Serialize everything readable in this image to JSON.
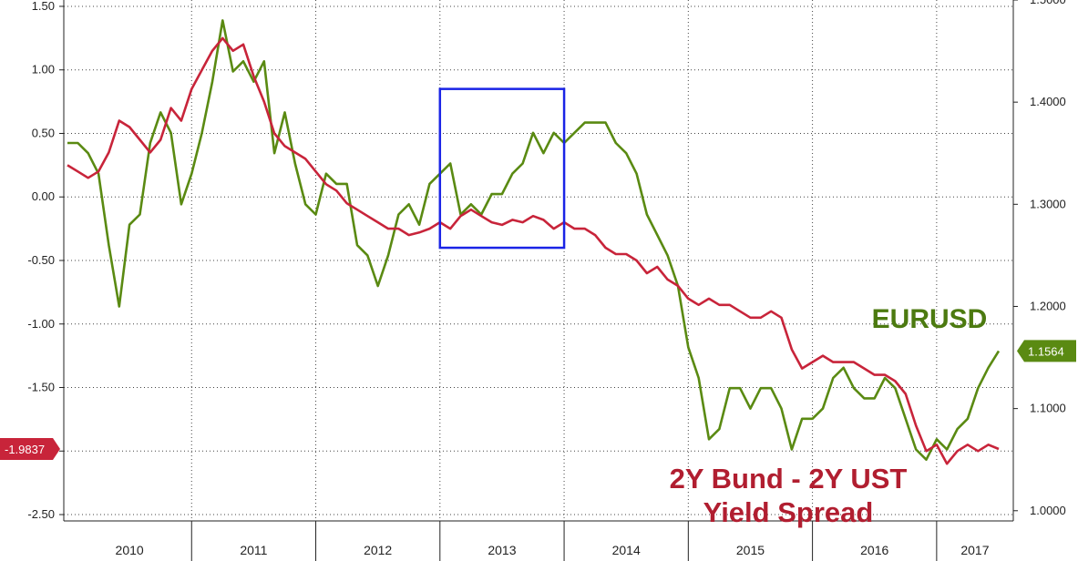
{
  "chart_data": {
    "type": "line",
    "x_axis": {
      "type": "date",
      "tick_labels": [
        "2010",
        "2011",
        "2012",
        "2013",
        "2014",
        "2015",
        "2016",
        "2017"
      ],
      "range": [
        "2010-01",
        "2017-07"
      ]
    },
    "y_left": {
      "tick_labels": [
        "1.50",
        "1.00",
        "0.50",
        "0.00",
        "-0.50",
        "-1.00",
        "-1.50",
        "-2.00",
        "-2.50"
      ],
      "range": [
        -2.55,
        1.55
      ]
    },
    "y_right": {
      "tick_labels": [
        "1.5000",
        "1.4000",
        "1.3000",
        "1.2000",
        "1.1000",
        "1.0000"
      ],
      "range": [
        0.99,
        1.5
      ]
    },
    "grid": true,
    "series": [
      {
        "name": "EURUSD",
        "axis": "right",
        "color": "#5a8a12",
        "last_value_label": "1.1564",
        "points": [
          [
            "2010-01",
            1.36
          ],
          [
            "2010-02",
            1.36
          ],
          [
            "2010-03",
            1.35
          ],
          [
            "2010-04",
            1.33
          ],
          [
            "2010-05",
            1.26
          ],
          [
            "2010-06",
            1.2
          ],
          [
            "2010-07",
            1.28
          ],
          [
            "2010-08",
            1.29
          ],
          [
            "2010-09",
            1.36
          ],
          [
            "2010-10",
            1.39
          ],
          [
            "2010-11",
            1.37
          ],
          [
            "2010-12",
            1.3
          ],
          [
            "2011-01",
            1.33
          ],
          [
            "2011-02",
            1.37
          ],
          [
            "2011-03",
            1.42
          ],
          [
            "2011-04",
            1.48
          ],
          [
            "2011-05",
            1.43
          ],
          [
            "2011-06",
            1.44
          ],
          [
            "2011-07",
            1.42
          ],
          [
            "2011-08",
            1.44
          ],
          [
            "2011-09",
            1.35
          ],
          [
            "2011-10",
            1.39
          ],
          [
            "2011-11",
            1.34
          ],
          [
            "2011-12",
            1.3
          ],
          [
            "2012-01",
            1.29
          ],
          [
            "2012-02",
            1.33
          ],
          [
            "2012-03",
            1.32
          ],
          [
            "2012-04",
            1.32
          ],
          [
            "2012-05",
            1.26
          ],
          [
            "2012-06",
            1.25
          ],
          [
            "2012-07",
            1.22
          ],
          [
            "2012-08",
            1.25
          ],
          [
            "2012-09",
            1.29
          ],
          [
            "2012-10",
            1.3
          ],
          [
            "2012-11",
            1.28
          ],
          [
            "2012-12",
            1.32
          ],
          [
            "2013-01",
            1.33
          ],
          [
            "2013-02",
            1.34
          ],
          [
            "2013-03",
            1.29
          ],
          [
            "2013-04",
            1.3
          ],
          [
            "2013-05",
            1.29
          ],
          [
            "2013-06",
            1.31
          ],
          [
            "2013-07",
            1.31
          ],
          [
            "2013-08",
            1.33
          ],
          [
            "2013-09",
            1.34
          ],
          [
            "2013-10",
            1.37
          ],
          [
            "2013-11",
            1.35
          ],
          [
            "2013-12",
            1.37
          ],
          [
            "2014-01",
            1.36
          ],
          [
            "2014-02",
            1.37
          ],
          [
            "2014-03",
            1.38
          ],
          [
            "2014-04",
            1.38
          ],
          [
            "2014-05",
            1.38
          ],
          [
            "2014-06",
            1.36
          ],
          [
            "2014-07",
            1.35
          ],
          [
            "2014-08",
            1.33
          ],
          [
            "2014-09",
            1.29
          ],
          [
            "2014-10",
            1.27
          ],
          [
            "2014-11",
            1.25
          ],
          [
            "2014-12",
            1.22
          ],
          [
            "2015-01",
            1.16
          ],
          [
            "2015-02",
            1.13
          ],
          [
            "2015-03",
            1.07
          ],
          [
            "2015-04",
            1.08
          ],
          [
            "2015-05",
            1.12
          ],
          [
            "2015-06",
            1.12
          ],
          [
            "2015-07",
            1.1
          ],
          [
            "2015-08",
            1.12
          ],
          [
            "2015-09",
            1.12
          ],
          [
            "2015-10",
            1.1
          ],
          [
            "2015-11",
            1.06
          ],
          [
            "2015-12",
            1.09
          ],
          [
            "2016-01",
            1.09
          ],
          [
            "2016-02",
            1.1
          ],
          [
            "2016-03",
            1.13
          ],
          [
            "2016-04",
            1.14
          ],
          [
            "2016-05",
            1.12
          ],
          [
            "2016-06",
            1.11
          ],
          [
            "2016-07",
            1.11
          ],
          [
            "2016-08",
            1.13
          ],
          [
            "2016-09",
            1.12
          ],
          [
            "2016-10",
            1.09
          ],
          [
            "2016-11",
            1.06
          ],
          [
            "2016-12",
            1.05
          ],
          [
            "2017-01",
            1.07
          ],
          [
            "2017-02",
            1.06
          ],
          [
            "2017-03",
            1.08
          ],
          [
            "2017-04",
            1.09
          ],
          [
            "2017-05",
            1.12
          ],
          [
            "2017-06",
            1.14
          ],
          [
            "2017-07",
            1.1564
          ]
        ]
      },
      {
        "name": "2Y Bund - 2Y UST Yield Spread",
        "axis": "left",
        "color": "#c8243a",
        "last_value_label": "-1.9837",
        "points": [
          [
            "2010-01",
            0.25
          ],
          [
            "2010-02",
            0.2
          ],
          [
            "2010-03",
            0.15
          ],
          [
            "2010-04",
            0.2
          ],
          [
            "2010-05",
            0.35
          ],
          [
            "2010-06",
            0.6
          ],
          [
            "2010-07",
            0.55
          ],
          [
            "2010-08",
            0.45
          ],
          [
            "2010-09",
            0.35
          ],
          [
            "2010-10",
            0.45
          ],
          [
            "2010-11",
            0.7
          ],
          [
            "2010-12",
            0.6
          ],
          [
            "2011-01",
            0.85
          ],
          [
            "2011-02",
            1.0
          ],
          [
            "2011-03",
            1.15
          ],
          [
            "2011-04",
            1.25
          ],
          [
            "2011-05",
            1.15
          ],
          [
            "2011-06",
            1.2
          ],
          [
            "2011-07",
            0.95
          ],
          [
            "2011-08",
            0.75
          ],
          [
            "2011-09",
            0.5
          ],
          [
            "2011-10",
            0.4
          ],
          [
            "2011-11",
            0.35
          ],
          [
            "2011-12",
            0.3
          ],
          [
            "2012-01",
            0.2
          ],
          [
            "2012-02",
            0.1
          ],
          [
            "2012-03",
            0.05
          ],
          [
            "2012-04",
            -0.05
          ],
          [
            "2012-05",
            -0.1
          ],
          [
            "2012-06",
            -0.15
          ],
          [
            "2012-07",
            -0.2
          ],
          [
            "2012-08",
            -0.25
          ],
          [
            "2012-09",
            -0.25
          ],
          [
            "2012-10",
            -0.3
          ],
          [
            "2012-11",
            -0.28
          ],
          [
            "2012-12",
            -0.25
          ],
          [
            "2013-01",
            -0.2
          ],
          [
            "2013-02",
            -0.25
          ],
          [
            "2013-03",
            -0.15
          ],
          [
            "2013-04",
            -0.1
          ],
          [
            "2013-05",
            -0.15
          ],
          [
            "2013-06",
            -0.2
          ],
          [
            "2013-07",
            -0.22
          ],
          [
            "2013-08",
            -0.18
          ],
          [
            "2013-09",
            -0.2
          ],
          [
            "2013-10",
            -0.15
          ],
          [
            "2013-11",
            -0.18
          ],
          [
            "2013-12",
            -0.25
          ],
          [
            "2014-01",
            -0.2
          ],
          [
            "2014-02",
            -0.25
          ],
          [
            "2014-03",
            -0.25
          ],
          [
            "2014-04",
            -0.3
          ],
          [
            "2014-05",
            -0.4
          ],
          [
            "2014-06",
            -0.45
          ],
          [
            "2014-07",
            -0.45
          ],
          [
            "2014-08",
            -0.5
          ],
          [
            "2014-09",
            -0.6
          ],
          [
            "2014-10",
            -0.55
          ],
          [
            "2014-11",
            -0.65
          ],
          [
            "2014-12",
            -0.7
          ],
          [
            "2015-01",
            -0.8
          ],
          [
            "2015-02",
            -0.85
          ],
          [
            "2015-03",
            -0.8
          ],
          [
            "2015-04",
            -0.85
          ],
          [
            "2015-05",
            -0.85
          ],
          [
            "2015-06",
            -0.9
          ],
          [
            "2015-07",
            -0.95
          ],
          [
            "2015-08",
            -0.95
          ],
          [
            "2015-09",
            -0.9
          ],
          [
            "2015-10",
            -0.95
          ],
          [
            "2015-11",
            -1.2
          ],
          [
            "2015-12",
            -1.35
          ],
          [
            "2016-01",
            -1.3
          ],
          [
            "2016-02",
            -1.25
          ],
          [
            "2016-03",
            -1.3
          ],
          [
            "2016-04",
            -1.3
          ],
          [
            "2016-05",
            -1.3
          ],
          [
            "2016-06",
            -1.35
          ],
          [
            "2016-07",
            -1.4
          ],
          [
            "2016-08",
            -1.4
          ],
          [
            "2016-09",
            -1.45
          ],
          [
            "2016-10",
            -1.55
          ],
          [
            "2016-11",
            -1.8
          ],
          [
            "2016-12",
            -2.0
          ],
          [
            "2017-01",
            -1.95
          ],
          [
            "2017-02",
            -2.1
          ],
          [
            "2017-03",
            -2.0
          ],
          [
            "2017-04",
            -1.95
          ],
          [
            "2017-05",
            -2.0
          ],
          [
            "2017-06",
            -1.95
          ],
          [
            "2017-07",
            -1.9837
          ]
        ]
      }
    ],
    "highlight_box": {
      "x_range": [
        "2013-01",
        "2014-01"
      ],
      "y_range": [
        -0.4,
        0.85
      ],
      "axis": "left",
      "color": "#1a24e6"
    },
    "annotations": [
      {
        "text": "EURUSD",
        "series": "EURUSD",
        "color": "#4c7a10"
      },
      {
        "text": "2Y Bund - 2Y UST",
        "series": "2Y Bund - 2Y UST Yield Spread",
        "color": "#b11e30"
      },
      {
        "text": "Yield Spread",
        "series": "2Y Bund - 2Y UST Yield Spread",
        "color": "#b11e30"
      }
    ]
  }
}
